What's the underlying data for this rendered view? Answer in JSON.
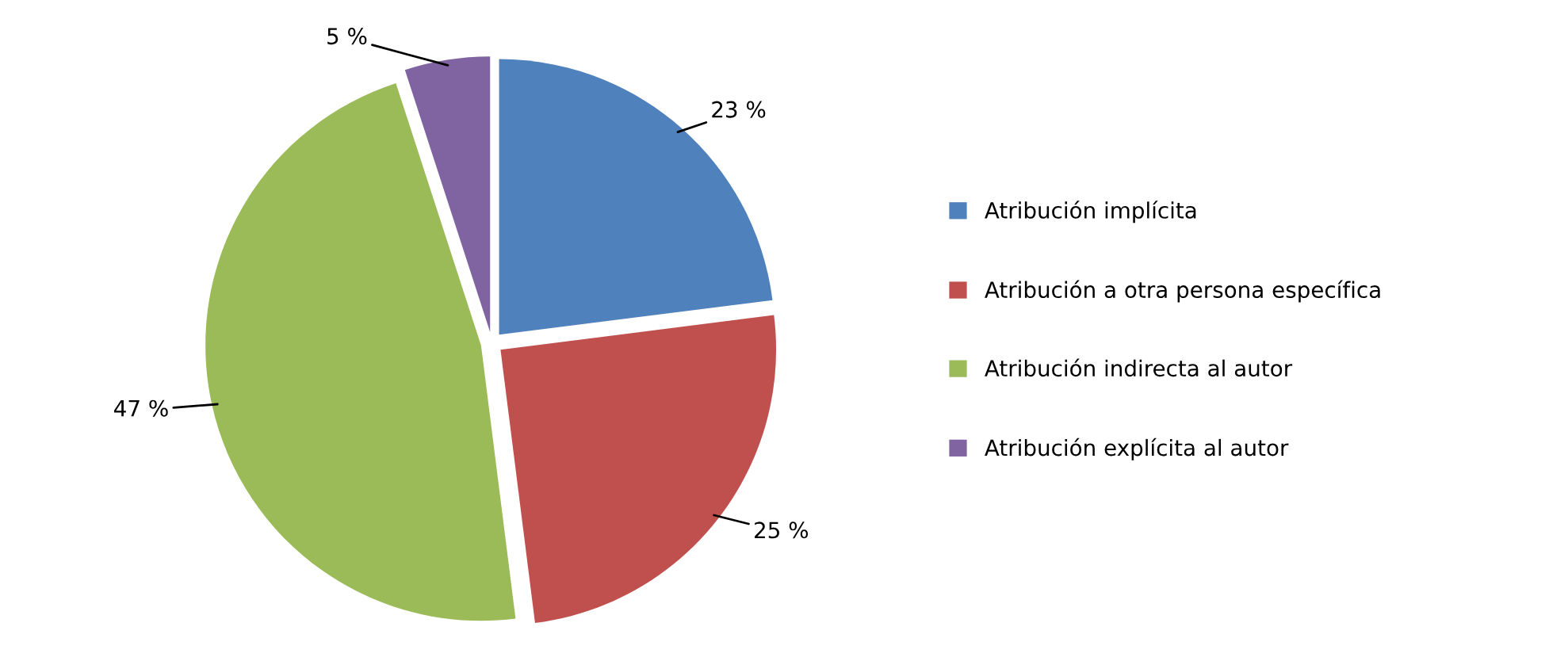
{
  "chart_data": {
    "type": "pie",
    "categories": [
      "Atribución implícita",
      "Atribución a otra persona específica",
      "Atribución indirecta al autor",
      "Atribución explícita al autor"
    ],
    "values": [
      23,
      25,
      47,
      5
    ],
    "colors": [
      "#4f81bd",
      "#c0504d",
      "#9bbb59",
      "#8064a2"
    ],
    "value_labels": [
      "23 %",
      "25 %",
      "47 %",
      "5 %"
    ],
    "legend": "right"
  }
}
